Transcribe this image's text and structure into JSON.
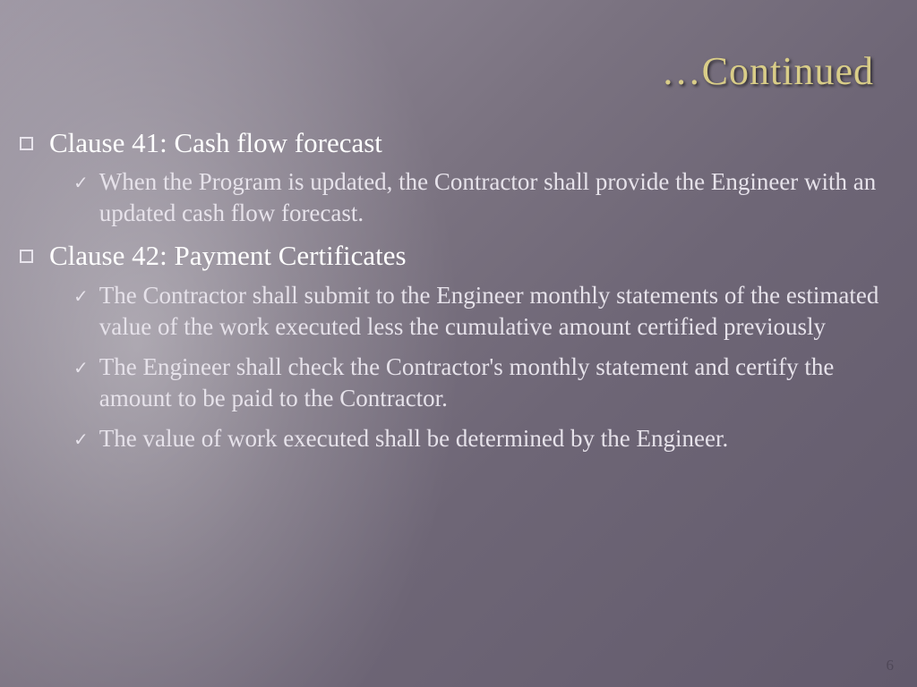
{
  "slide": {
    "title": "…Continued",
    "title_color": "#d9cd88",
    "background_gradient_from": "#9a93a0",
    "background_gradient_to": "#625a6c",
    "light_ray_color": "rgba(255,255,255,0.35)",
    "page_number": "6",
    "page_number_color": "#4f4858",
    "bullets": [
      {
        "level": 1,
        "marker": "square",
        "text": "Clause 41: Cash flow forecast",
        "text_color": "#ffffff",
        "fontsize": 31
      },
      {
        "level": 2,
        "marker": "check",
        "text": "When the Program is updated, the Contractor shall provide the Engineer with an updated cash flow forecast.",
        "text_color": "#e6e2ea",
        "fontsize": 27
      },
      {
        "level": 1,
        "marker": "square",
        "text": "Clause 42: Payment Certificates",
        "text_color": "#ffffff",
        "fontsize": 31
      },
      {
        "level": 2,
        "marker": "check",
        "text": "The Contractor shall submit to the Engineer monthly statements of the estimated value of the work executed less the cumulative amount certified previously",
        "text_color": "#e6e2ea",
        "fontsize": 27
      },
      {
        "level": 2,
        "marker": "check",
        "text": "The Engineer shall check the Contractor's monthly statement and certify the amount to be paid to the Contractor.",
        "text_color": "#e6e2ea",
        "fontsize": 27
      },
      {
        "level": 2,
        "marker": "check",
        "text": "The value of work executed shall be determined by the Engineer.",
        "text_color": "#e6e2ea",
        "fontsize": 27
      }
    ]
  }
}
